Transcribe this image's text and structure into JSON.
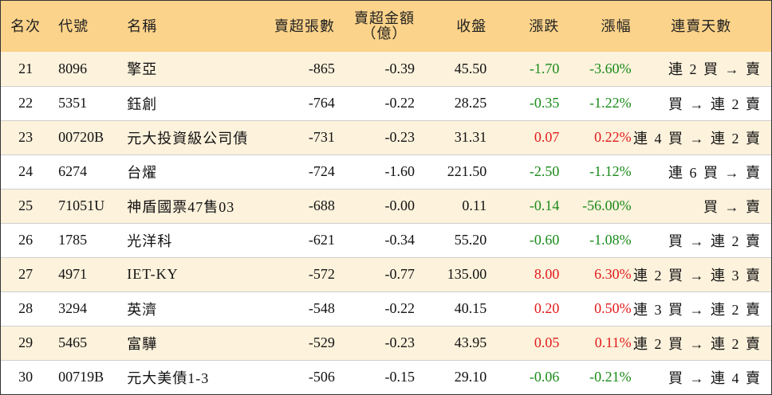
{
  "headers": {
    "rank": "名次",
    "code": "代號",
    "name": "名稱",
    "net_lots": "賣超張數",
    "net_amount_line1": "賣超金額",
    "net_amount_line2": "（億）",
    "close": "收盤",
    "change": "漲跌",
    "change_pct": "漲幅",
    "streak": "連賣天數"
  },
  "rows": [
    {
      "rank": "21",
      "code": "8096",
      "name": "擎亞",
      "net_lots": "-865",
      "net_amount": "-0.39",
      "close": "45.50",
      "change": "-1.70",
      "change_pct": "-3.60%",
      "streak": "連 2 買 → 賣",
      "dir": "neg"
    },
    {
      "rank": "22",
      "code": "5351",
      "name": "鈺創",
      "net_lots": "-764",
      "net_amount": "-0.22",
      "close": "28.25",
      "change": "-0.35",
      "change_pct": "-1.22%",
      "streak": "買 → 連 2 賣",
      "dir": "neg"
    },
    {
      "rank": "23",
      "code": "00720B",
      "name": "元大投資級公司債",
      "net_lots": "-731",
      "net_amount": "-0.23",
      "close": "31.31",
      "change": "0.07",
      "change_pct": "0.22%",
      "streak": "連 4 買 → 連 2 賣",
      "dir": "pos"
    },
    {
      "rank": "24",
      "code": "6274",
      "name": "台燿",
      "net_lots": "-724",
      "net_amount": "-1.60",
      "close": "221.50",
      "change": "-2.50",
      "change_pct": "-1.12%",
      "streak": "連 6 買 → 賣",
      "dir": "neg"
    },
    {
      "rank": "25",
      "code": "71051U",
      "name": "神盾國票47售03",
      "net_lots": "-688",
      "net_amount": "-0.00",
      "close": "0.11",
      "change": "-0.14",
      "change_pct": "-56.00%",
      "streak": "買 → 賣",
      "dir": "neg"
    },
    {
      "rank": "26",
      "code": "1785",
      "name": "光洋科",
      "net_lots": "-621",
      "net_amount": "-0.34",
      "close": "55.20",
      "change": "-0.60",
      "change_pct": "-1.08%",
      "streak": "買 → 連 2 賣",
      "dir": "neg"
    },
    {
      "rank": "27",
      "code": "4971",
      "name": "IET-KY",
      "net_lots": "-572",
      "net_amount": "-0.77",
      "close": "135.00",
      "change": "8.00",
      "change_pct": "6.30%",
      "streak": "連 2 買 → 連 3 賣",
      "dir": "pos"
    },
    {
      "rank": "28",
      "code": "3294",
      "name": "英濟",
      "net_lots": "-548",
      "net_amount": "-0.22",
      "close": "40.15",
      "change": "0.20",
      "change_pct": "0.50%",
      "streak": "連 3 買 → 連 2 賣",
      "dir": "pos"
    },
    {
      "rank": "29",
      "code": "5465",
      "name": "富驊",
      "net_lots": "-529",
      "net_amount": "-0.23",
      "close": "43.95",
      "change": "0.05",
      "change_pct": "0.11%",
      "streak": "連 2 買 → 連 2 賣",
      "dir": "pos"
    },
    {
      "rank": "30",
      "code": "00719B",
      "name": "元大美債1-3",
      "net_lots": "-506",
      "net_amount": "-0.15",
      "close": "29.10",
      "change": "-0.06",
      "change_pct": "-0.21%",
      "streak": "買 → 連 4 賣",
      "dir": "neg"
    }
  ],
  "colors": {
    "header_bg": "#fcd38a",
    "odd_row_bg": "#fdf2dc",
    "even_row_bg": "#ffffff",
    "down_color": "#1a8a1a",
    "up_color": "#e21b1b"
  }
}
